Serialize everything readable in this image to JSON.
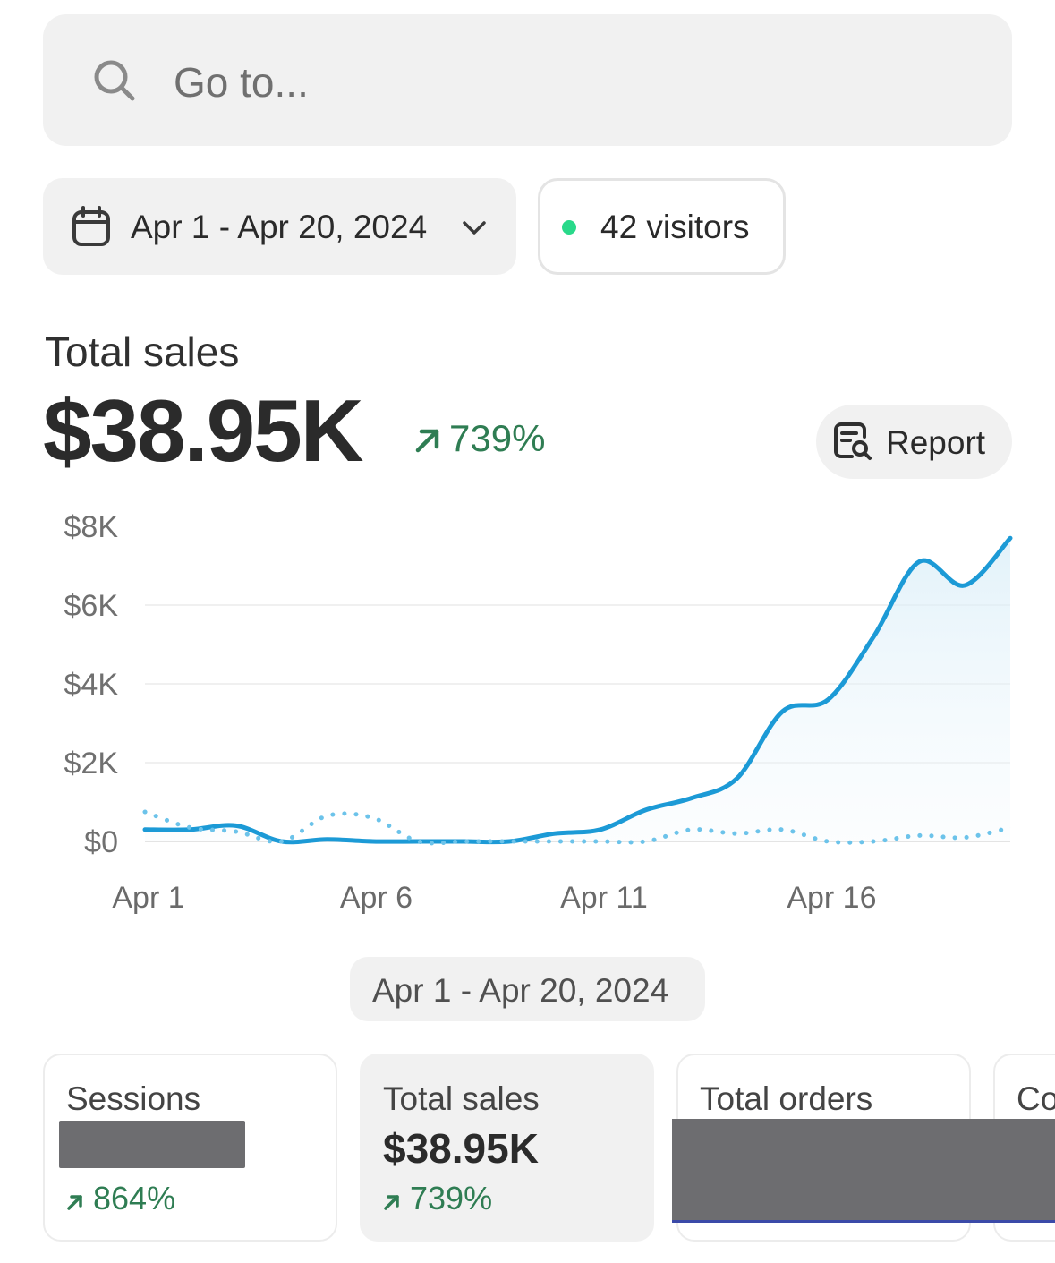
{
  "search": {
    "placeholder": "Go to...",
    "icon": "search-icon"
  },
  "filters": {
    "date_range": "Apr 1 - Apr 20, 2024",
    "visitors_label": "42 visitors",
    "visitors_dot_color": "#29d98a"
  },
  "summary": {
    "title": "Total sales",
    "value": "$38.95K",
    "change": "739%",
    "change_color": "#2f7d53",
    "report_label": "Report"
  },
  "chart_data": {
    "type": "line",
    "x": [
      "Apr 1",
      "Apr 2",
      "Apr 3",
      "Apr 4",
      "Apr 5",
      "Apr 6",
      "Apr 7",
      "Apr 8",
      "Apr 9",
      "Apr 10",
      "Apr 11",
      "Apr 12",
      "Apr 13",
      "Apr 14",
      "Apr 15",
      "Apr 16",
      "Apr 17",
      "Apr 18",
      "Apr 19",
      "Apr 20"
    ],
    "series": [
      {
        "style": "solid",
        "color": "#1c9ad6",
        "values": [
          300,
          300,
          400,
          0,
          50,
          0,
          0,
          0,
          0,
          200,
          300,
          800,
          1100,
          1600,
          3300,
          3600,
          5200,
          7100,
          6500,
          7700
        ]
      },
      {
        "style": "dotted",
        "color": "#6cc3ea",
        "values": [
          750,
          350,
          250,
          0,
          650,
          600,
          0,
          0,
          0,
          0,
          0,
          0,
          300,
          200,
          300,
          0,
          0,
          150,
          100,
          350
        ]
      }
    ],
    "yticks": [
      "$8K",
      "$6K",
      "$4K",
      "$2K",
      "$0"
    ],
    "xticks": [
      "Apr 1",
      "Apr 6",
      "Apr 11",
      "Apr 16"
    ],
    "ylim": [
      0,
      8000
    ],
    "grid": true
  },
  "range_label": "Apr 1 - Apr 20, 2024",
  "cards": [
    {
      "label": "Sessions",
      "change": "864%"
    },
    {
      "label": "Total sales",
      "value": "$38.95K",
      "change": "739%"
    },
    {
      "label": "Total orders"
    },
    {
      "label": "Co"
    }
  ]
}
